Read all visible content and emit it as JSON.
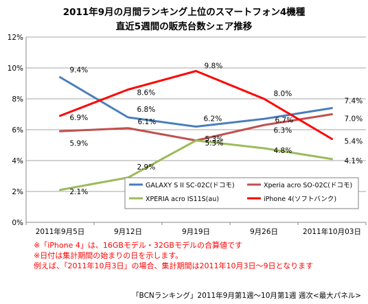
{
  "chart_data": {
    "type": "line",
    "title": [
      "2011年9月の月間ランキング上位のスマートフォン4機種",
      "直近5週間の販売台数シェア推移"
    ],
    "categories": [
      "2011年9月5日",
      "9月12日",
      "9月19日",
      "9月26日",
      "2011年10月03日"
    ],
    "ylim": [
      0,
      12
    ],
    "ytick_step": 2,
    "ytick_suffix": "%",
    "grid": true,
    "legend_placement": "lower-right inside plot",
    "series": [
      {
        "name": "GALAXY S II SC-02C(ドコモ)",
        "color": "#4a7ebb",
        "values": [
          9.4,
          6.8,
          6.2,
          6.7,
          7.4
        ],
        "labels": [
          "9.4%",
          "6.8%",
          "6.2%",
          "6.7%",
          "7.4%"
        ]
      },
      {
        "name": "Xperia acro SO-02C(ドコモ)",
        "color": "#c0504d",
        "values": [
          5.9,
          6.1,
          5.3,
          6.3,
          7.0
        ],
        "labels": [
          "5.9%",
          "6.1%",
          "5.3%",
          "6.3%",
          "7.0%"
        ]
      },
      {
        "name": "XPERIA acro IS11S(au)",
        "color": "#9bbb59",
        "values": [
          2.1,
          2.9,
          5.3,
          4.8,
          4.1
        ],
        "labels": [
          "2.1%",
          "2.9%",
          "5.3%",
          "4.8%",
          "4.1%"
        ]
      },
      {
        "name": "iPhone 4(ソフトバンク)",
        "color": "#ff0000",
        "values": [
          6.9,
          8.6,
          9.8,
          8.0,
          5.4
        ],
        "labels": [
          "6.9%",
          "8.6%",
          "9.8%",
          "8.0%",
          "5.4%"
        ]
      }
    ]
  },
  "notes": [
    "※「iPhone 4」は、16GBモデル・32GBモデルの合算値です",
    "※日付は集計期間の始まりの日を示します。",
    "例えば、「2011年10月3日」の場合、集計期間は2011年10月3日～9日となります"
  ],
  "source": "「BCNランキング」2011年9月第1週～10月第1週 週次<最大パネル>"
}
